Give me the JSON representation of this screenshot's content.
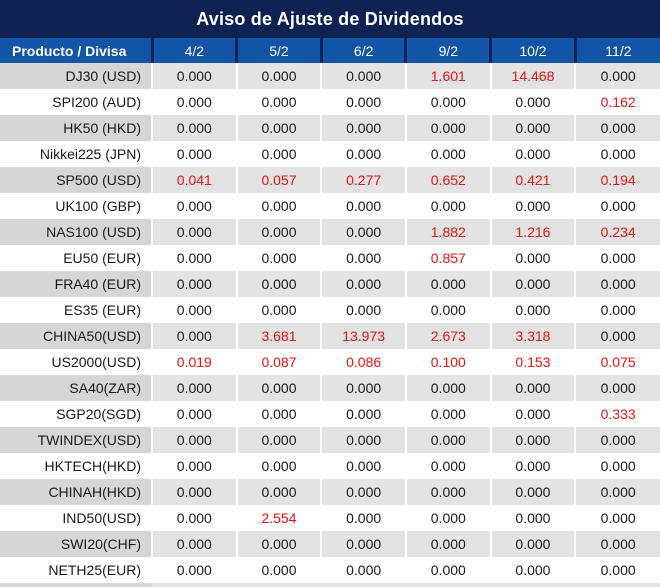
{
  "chart_data": {
    "type": "table",
    "title": "Aviso de Ajuste de Dividendos",
    "product_header": "Producto / Divisa",
    "date_columns": [
      "4/2",
      "5/2",
      "6/2",
      "9/2",
      "10/2",
      "11/2"
    ],
    "rows": [
      {
        "product": "DJ30 (USD)",
        "values": [
          "0.000",
          "0.000",
          "0.000",
          "1.601",
          "14.468",
          "0.000"
        ],
        "red": [
          false,
          false,
          false,
          true,
          true,
          false
        ]
      },
      {
        "product": "SPI200 (AUD)",
        "values": [
          "0.000",
          "0.000",
          "0.000",
          "0.000",
          "0.000",
          "0.162"
        ],
        "red": [
          false,
          false,
          false,
          false,
          false,
          true
        ]
      },
      {
        "product": "HK50 (HKD)",
        "values": [
          "0.000",
          "0.000",
          "0.000",
          "0.000",
          "0.000",
          "0.000"
        ],
        "red": [
          false,
          false,
          false,
          false,
          false,
          false
        ]
      },
      {
        "product": "Nikkei225 (JPN)",
        "values": [
          "0.000",
          "0.000",
          "0.000",
          "0.000",
          "0.000",
          "0.000"
        ],
        "red": [
          false,
          false,
          false,
          false,
          false,
          false
        ]
      },
      {
        "product": "SP500 (USD)",
        "values": [
          "0.041",
          "0.057",
          "0.277",
          "0.652",
          "0.421",
          "0.194"
        ],
        "red": [
          true,
          true,
          true,
          true,
          true,
          true
        ]
      },
      {
        "product": "UK100 (GBP)",
        "values": [
          "0.000",
          "0.000",
          "0.000",
          "0.000",
          "0.000",
          "0.000"
        ],
        "red": [
          false,
          false,
          false,
          false,
          false,
          false
        ]
      },
      {
        "product": "NAS100 (USD)",
        "values": [
          "0.000",
          "0.000",
          "0.000",
          "1.882",
          "1.216",
          "0.234"
        ],
        "red": [
          false,
          false,
          false,
          true,
          true,
          true
        ]
      },
      {
        "product": "EU50 (EUR)",
        "values": [
          "0.000",
          "0.000",
          "0.000",
          "0.857",
          "0.000",
          "0.000"
        ],
        "red": [
          false,
          false,
          false,
          true,
          false,
          false
        ]
      },
      {
        "product": "FRA40 (EUR)",
        "values": [
          "0.000",
          "0.000",
          "0.000",
          "0.000",
          "0.000",
          "0.000"
        ],
        "red": [
          false,
          false,
          false,
          false,
          false,
          false
        ]
      },
      {
        "product": "ES35 (EUR)",
        "values": [
          "0.000",
          "0.000",
          "0.000",
          "0.000",
          "0.000",
          "0.000"
        ],
        "red": [
          false,
          false,
          false,
          false,
          false,
          false
        ]
      },
      {
        "product": "CHINA50(USD)",
        "values": [
          "0.000",
          "3.681",
          "13.973",
          "2.673",
          "3.318",
          "0.000"
        ],
        "red": [
          false,
          true,
          true,
          true,
          true,
          false
        ]
      },
      {
        "product": "US2000(USD)",
        "values": [
          "0.019",
          "0.087",
          "0.086",
          "0.100",
          "0.153",
          "0.075"
        ],
        "red": [
          true,
          true,
          true,
          true,
          true,
          true
        ]
      },
      {
        "product": "SA40(ZAR)",
        "values": [
          "0.000",
          "0.000",
          "0.000",
          "0.000",
          "0.000",
          "0.000"
        ],
        "red": [
          false,
          false,
          false,
          false,
          false,
          false
        ]
      },
      {
        "product": "SGP20(SGD)",
        "values": [
          "0.000",
          "0.000",
          "0.000",
          "0.000",
          "0.000",
          "0.333"
        ],
        "red": [
          false,
          false,
          false,
          false,
          false,
          true
        ]
      },
      {
        "product": "TWINDEX(USD)",
        "values": [
          "0.000",
          "0.000",
          "0.000",
          "0.000",
          "0.000",
          "0.000"
        ],
        "red": [
          false,
          false,
          false,
          false,
          false,
          false
        ]
      },
      {
        "product": "HKTECH(HKD)",
        "values": [
          "0.000",
          "0.000",
          "0.000",
          "0.000",
          "0.000",
          "0.000"
        ],
        "red": [
          false,
          false,
          false,
          false,
          false,
          false
        ]
      },
      {
        "product": "CHINAH(HKD)",
        "values": [
          "0.000",
          "0.000",
          "0.000",
          "0.000",
          "0.000",
          "0.000"
        ],
        "red": [
          false,
          false,
          false,
          false,
          false,
          false
        ]
      },
      {
        "product": "IND50(USD)",
        "values": [
          "0.000",
          "2.554",
          "0.000",
          "0.000",
          "0.000",
          "0.000"
        ],
        "red": [
          false,
          true,
          false,
          false,
          false,
          false
        ]
      },
      {
        "product": "SWI20(CHF)",
        "values": [
          "0.000",
          "0.000",
          "0.000",
          "0.000",
          "0.000",
          "0.000"
        ],
        "red": [
          false,
          false,
          false,
          false,
          false,
          false
        ]
      },
      {
        "product": "NETH25(EUR)",
        "values": [
          "0.000",
          "0.000",
          "0.000",
          "0.000",
          "0.000",
          "0.000"
        ],
        "red": [
          false,
          false,
          false,
          false,
          false,
          false
        ]
      }
    ]
  },
  "colors": {
    "title_bg": "#0d2152",
    "header_bg": "#1254a6",
    "header_divider": "#0d2152",
    "gray_row_product_bg": "#d6d6d6",
    "gray_row_value_bg": "#e3e3e3",
    "white_row_bg": "#ffffff",
    "text_dark": "#1a1a1a",
    "text_red": "#ee1111",
    "header_text": "#ffffff"
  }
}
